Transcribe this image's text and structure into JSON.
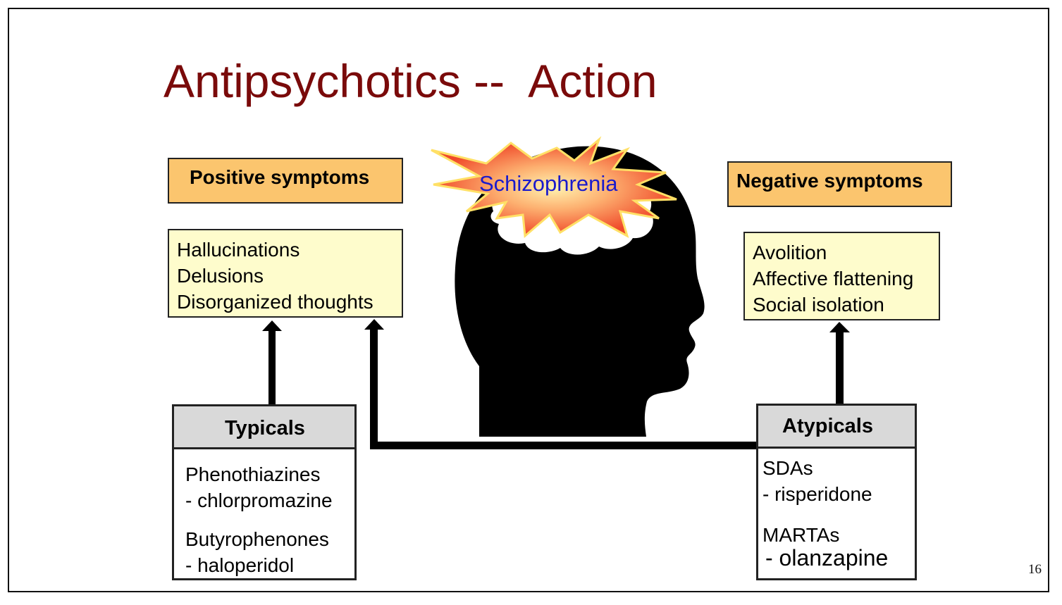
{
  "title": "Antipsychotics --  Action",
  "center_label": "Schizophrenia",
  "positive": {
    "header": "Positive symptoms",
    "items": [
      "Hallucinations",
      "Delusions",
      "Disorganized thoughts"
    ]
  },
  "negative": {
    "header": "Negative symptoms",
    "items": [
      "Avolition",
      "Affective flattening",
      "Social isolation"
    ]
  },
  "typicals": {
    "header": "Typicals",
    "lines": [
      "Phenothiazines",
      "- chlorpromazine",
      "Butyrophenones",
      "- haloperidol"
    ]
  },
  "atypicals": {
    "header": "Atypicals",
    "lines": [
      "SDAs",
      "- risperidone",
      "MARTAs",
      "- olanzapine"
    ]
  },
  "page_number": "16",
  "colors": {
    "title": "#7a0a0a",
    "header_fill": "#fbc56e",
    "list_fill": "#fefccc",
    "drug_header_fill": "#d9d9d9",
    "center_label": "#1a1acc"
  }
}
